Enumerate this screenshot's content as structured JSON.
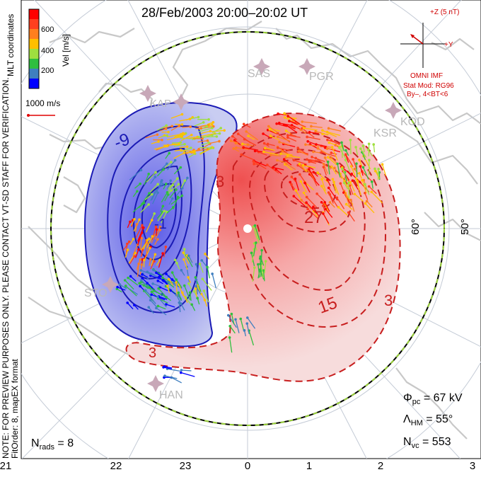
{
  "header": {
    "title": "28/Feb/2003 20:00–20:02 UT"
  },
  "colorbar": {
    "title": "Vel [m/s]",
    "ticks": [
      "600",
      "400",
      "200"
    ],
    "colors": [
      "#0000ff",
      "#3f7fbf",
      "#2fbf3f",
      "#9fdf3f",
      "#ffbf00",
      "#ff7f1f",
      "#ff3f1f",
      "#ff0000"
    ]
  },
  "coord_label": "MLT coordinates",
  "reference_vector": {
    "label": "1000 m/s"
  },
  "notes": {
    "preview": "NOTE: FOR PREVIEW PURPOSES ONLY. PLEASE CONTACT VT-SD STAFF FOR VERIFICATION.",
    "fitorder": "FitOrder: 8, mapEX format"
  },
  "imf": {
    "z_label": "+Z (5 nT)",
    "y_label": "+Y",
    "source": "OMNI IMF",
    "model": "Stat Mod: RG96",
    "condition": "By–, 4<BT<6"
  },
  "stations": [
    "KAP",
    "SAS",
    "PGR",
    "KSR",
    "KOD",
    "STO",
    "HAN"
  ],
  "latitude_labels": [
    "60°",
    "50°"
  ],
  "contour_labels": [
    "-9",
    "-1",
    "3",
    "27",
    "15",
    "3",
    "3"
  ],
  "mlt_labels": [
    "21",
    "22",
    "23",
    "0",
    "1",
    "2",
    "3"
  ],
  "stats": {
    "phi_pc": "67 kV",
    "lambda_hm": "55°",
    "n_vc": "553",
    "n_rads": "8"
  },
  "colors": {
    "neg_fill": "#b9bfee",
    "neg_line": "#1b1bb5",
    "pos_fill": "#f4c2c2",
    "pos_line": "#c81e1e",
    "land": "#c8c8c8"
  }
}
